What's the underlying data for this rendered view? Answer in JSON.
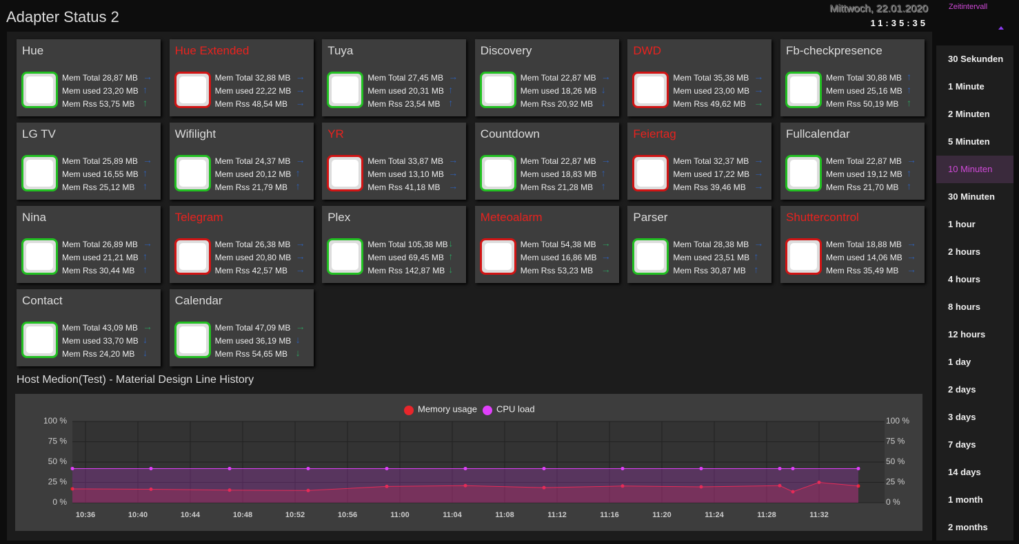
{
  "header": {
    "title": "Adapter Status 2",
    "date": "Mittwoch, 22.01.2020",
    "time": "11:35:35"
  },
  "interval": {
    "label": "Zeitintervall",
    "selected": 4,
    "options": [
      "30 Sekunden",
      "1 Minute",
      "2 Minuten",
      "5 Minuten",
      "10 Minuten",
      "30 Minuten",
      "1 hour",
      "2 hours",
      "4 hours",
      "8 hours",
      "12 hours",
      "1 day",
      "2 days",
      "3 days",
      "7 days",
      "14 days",
      "1 month",
      "2 months"
    ]
  },
  "adapters": [
    {
      "name": "Hue",
      "status": "ok",
      "metrics": [
        {
          "text": "Mem Total 28,87 MB",
          "arrow": "→",
          "arrow_color": "#2f5fb3"
        },
        {
          "text": "Mem used 23,20 MB",
          "arrow": "↑",
          "arrow_color": "#2f5fb3"
        },
        {
          "text": "Mem Rss 53,75 MB",
          "arrow": "↑",
          "arrow_color": "#2e9e5e"
        }
      ]
    },
    {
      "name": "Hue Extended",
      "status": "error",
      "metrics": [
        {
          "text": "Mem Total 32,88 MB",
          "arrow": "→",
          "arrow_color": "#2f5fb3"
        },
        {
          "text": "Mem used 22,22 MB",
          "arrow": "→",
          "arrow_color": "#2f5fb3"
        },
        {
          "text": "Mem Rss 48,54 MB",
          "arrow": "→",
          "arrow_color": "#2f5fb3"
        }
      ]
    },
    {
      "name": "Tuya",
      "status": "ok",
      "metrics": [
        {
          "text": "Mem Total 27,45 MB",
          "arrow": "→",
          "arrow_color": "#2f5fb3"
        },
        {
          "text": "Mem used 20,31 MB",
          "arrow": "↑",
          "arrow_color": "#2f5fb3"
        },
        {
          "text": "Mem Rss 23,54 MB",
          "arrow": "↑",
          "arrow_color": "#2f5fb3"
        }
      ]
    },
    {
      "name": "Discovery",
      "status": "ok",
      "metrics": [
        {
          "text": "Mem Total 22,87 MB",
          "arrow": "→",
          "arrow_color": "#2f5fb3"
        },
        {
          "text": "Mem used 18,26 MB",
          "arrow": "↓",
          "arrow_color": "#2f5fb3"
        },
        {
          "text": "Mem Rss 20,92 MB",
          "arrow": "↓",
          "arrow_color": "#2f5fb3"
        }
      ]
    },
    {
      "name": "DWD",
      "status": "error",
      "metrics": [
        {
          "text": "Mem Total 35,38 MB",
          "arrow": "→",
          "arrow_color": "#2f5fb3"
        },
        {
          "text": "Mem used 23,00 MB",
          "arrow": "→",
          "arrow_color": "#2f5fb3"
        },
        {
          "text": "Mem Rss 49,62 MB",
          "arrow": "→",
          "arrow_color": "#2e9e5e"
        }
      ]
    },
    {
      "name": "Fb-checkpresence",
      "status": "ok",
      "metrics": [
        {
          "text": "Mem Total 30,88 MB",
          "arrow": "↑",
          "arrow_color": "#2f5fb3"
        },
        {
          "text": "Mem used 25,16 MB",
          "arrow": "↑",
          "arrow_color": "#2f5fb3"
        },
        {
          "text": "Mem Rss 50,19 MB",
          "arrow": "↑",
          "arrow_color": "#2e9e5e"
        }
      ]
    },
    {
      "name": "LG TV",
      "status": "ok",
      "metrics": [
        {
          "text": "Mem Total 25,89 MB",
          "arrow": "→",
          "arrow_color": "#2f5fb3"
        },
        {
          "text": "Mem used 16,55 MB",
          "arrow": "↑",
          "arrow_color": "#2f5fb3"
        },
        {
          "text": "Mem Rss 25,12 MB",
          "arrow": "↑",
          "arrow_color": "#2f5fb3"
        }
      ]
    },
    {
      "name": "Wifilight",
      "status": "ok",
      "metrics": [
        {
          "text": "Mem Total 24,37 MB",
          "arrow": "→",
          "arrow_color": "#2f5fb3"
        },
        {
          "text": "Mem used 20,12 MB",
          "arrow": "↑",
          "arrow_color": "#2f5fb3"
        },
        {
          "text": "Mem Rss 21,79 MB",
          "arrow": "↑",
          "arrow_color": "#2f5fb3"
        }
      ]
    },
    {
      "name": "YR",
      "status": "error",
      "metrics": [
        {
          "text": "Mem Total 33,87 MB",
          "arrow": "→",
          "arrow_color": "#2f5fb3"
        },
        {
          "text": "Mem used 13,10 MB",
          "arrow": "→",
          "arrow_color": "#2f5fb3"
        },
        {
          "text": "Mem Rss 41,18 MB",
          "arrow": "→",
          "arrow_color": "#2f5fb3"
        }
      ]
    },
    {
      "name": "Countdown",
      "status": "ok",
      "metrics": [
        {
          "text": "Mem Total 22,87 MB",
          "arrow": "→",
          "arrow_color": "#2f5fb3"
        },
        {
          "text": "Mem used 18,83 MB",
          "arrow": "↑",
          "arrow_color": "#2f5fb3"
        },
        {
          "text": "Mem Rss 21,28 MB",
          "arrow": "↑",
          "arrow_color": "#2f5fb3"
        }
      ]
    },
    {
      "name": "Feiertag",
      "status": "error",
      "metrics": [
        {
          "text": "Mem Total 32,37 MB",
          "arrow": "→",
          "arrow_color": "#2f5fb3"
        },
        {
          "text": "Mem used 17,22 MB",
          "arrow": "→",
          "arrow_color": "#2f5fb3"
        },
        {
          "text": "Mem Rss 39,46 MB",
          "arrow": "→",
          "arrow_color": "#2f5fb3"
        }
      ]
    },
    {
      "name": "Fullcalendar",
      "status": "ok",
      "metrics": [
        {
          "text": "Mem Total 22,87 MB",
          "arrow": "→",
          "arrow_color": "#2f5fb3"
        },
        {
          "text": "Mem used 19,12 MB",
          "arrow": "↑",
          "arrow_color": "#2f5fb3"
        },
        {
          "text": "Mem Rss 21,70 MB",
          "arrow": "↑",
          "arrow_color": "#2f5fb3"
        }
      ]
    },
    {
      "name": "Nina",
      "status": "ok",
      "metrics": [
        {
          "text": "Mem Total 26,89 MB",
          "arrow": "→",
          "arrow_color": "#2f5fb3"
        },
        {
          "text": "Mem used 21,21 MB",
          "arrow": "↑",
          "arrow_color": "#2f5fb3"
        },
        {
          "text": "Mem Rss 30,44 MB",
          "arrow": "↑",
          "arrow_color": "#2f5fb3"
        }
      ]
    },
    {
      "name": "Telegram",
      "status": "error",
      "metrics": [
        {
          "text": "Mem Total 26,38 MB",
          "arrow": "→",
          "arrow_color": "#2f5fb3"
        },
        {
          "text": "Mem used 20,80 MB",
          "arrow": "→",
          "arrow_color": "#2f5fb3"
        },
        {
          "text": "Mem Rss 42,57 MB",
          "arrow": "→",
          "arrow_color": "#2f5fb3"
        }
      ]
    },
    {
      "name": "Plex",
      "status": "ok",
      "metrics": [
        {
          "text": "Mem Total 105,38 MB",
          "arrow": "↓",
          "arrow_color": "#2e9e5e"
        },
        {
          "text": "Mem used 69,45 MB",
          "arrow": "↑",
          "arrow_color": "#2e9e5e"
        },
        {
          "text": "Mem Rss 142,87 MB",
          "arrow": "↓",
          "arrow_color": "#2e9e5e"
        }
      ]
    },
    {
      "name": "Meteoalarm",
      "status": "error",
      "metrics": [
        {
          "text": "Mem Total 54,38 MB",
          "arrow": "→",
          "arrow_color": "#2e9e5e"
        },
        {
          "text": "Mem used 16,86 MB",
          "arrow": "→",
          "arrow_color": "#2f5fb3"
        },
        {
          "text": "Mem Rss 53,23 MB",
          "arrow": "→",
          "arrow_color": "#2e9e5e"
        }
      ]
    },
    {
      "name": "Parser",
      "status": "ok",
      "metrics": [
        {
          "text": "Mem Total 28,38 MB",
          "arrow": "→",
          "arrow_color": "#2f5fb3"
        },
        {
          "text": "Mem used 23,51 MB",
          "arrow": "↑",
          "arrow_color": "#2f5fb3"
        },
        {
          "text": "Mem Rss 30,87 MB",
          "arrow": "↑",
          "arrow_color": "#2f5fb3"
        }
      ]
    },
    {
      "name": "Shuttercontrol",
      "status": "error",
      "metrics": [
        {
          "text": "Mem Total 18,88 MB",
          "arrow": "→",
          "arrow_color": "#2f5fb3"
        },
        {
          "text": "Mem used 14,06 MB",
          "arrow": "→",
          "arrow_color": "#2f5fb3"
        },
        {
          "text": "Mem Rss 35,49 MB",
          "arrow": "→",
          "arrow_color": "#2f5fb3"
        }
      ]
    },
    {
      "name": "Contact",
      "status": "ok",
      "metrics": [
        {
          "text": "Mem Total 43,09 MB",
          "arrow": "→",
          "arrow_color": "#2e9e5e"
        },
        {
          "text": "Mem used 33,70 MB",
          "arrow": "↓",
          "arrow_color": "#2f5fb3"
        },
        {
          "text": "Mem Rss 24,20 MB",
          "arrow": "↓",
          "arrow_color": "#2f5fb3"
        }
      ]
    },
    {
      "name": "Calendar",
      "status": "ok",
      "metrics": [
        {
          "text": "Mem Total 47,09 MB",
          "arrow": "→",
          "arrow_color": "#2e9e5e"
        },
        {
          "text": "Mem used 36,19 MB",
          "arrow": "↓",
          "arrow_color": "#2f5fb3"
        },
        {
          "text": "Mem Rss 54,65 MB",
          "arrow": "↓",
          "arrow_color": "#2e9e5e"
        }
      ]
    }
  ],
  "history": {
    "type": "line",
    "title": "Host Medion(Test) - Material Design Line History",
    "xlim": [
      "10:35",
      "11:37"
    ],
    "xticks": [
      "10:36",
      "10:40",
      "10:44",
      "10:48",
      "10:52",
      "10:56",
      "11:00",
      "11:04",
      "11:08",
      "11:12",
      "11:16",
      "11:20",
      "11:24",
      "11:28",
      "11:32"
    ],
    "ylim": [
      0,
      100
    ],
    "yticks": [
      {
        "value": 0,
        "label": "0 %"
      },
      {
        "value": 25,
        "label": "25 %"
      },
      {
        "value": 50,
        "label": "50 %"
      },
      {
        "value": 75,
        "label": "75 %"
      },
      {
        "value": 100,
        "label": "100 %"
      }
    ],
    "y2lim": [
      0,
      100
    ],
    "y2ticks": [
      {
        "value": 0,
        "label": "0 %"
      },
      {
        "value": 25,
        "label": "25 %"
      },
      {
        "value": 50,
        "label": "50 %"
      },
      {
        "value": 75,
        "label": "75 %"
      },
      {
        "value": 100,
        "label": "100 %"
      }
    ],
    "grid": true,
    "series": [
      {
        "name": "Memory usage",
        "color": "#e8262b",
        "x": [
          "10:35",
          "10:41",
          "10:47",
          "10:53",
          "10:59",
          "11:05",
          "11:11",
          "11:17",
          "11:23",
          "11:29",
          "11:30",
          "11:32",
          "11:35"
        ],
        "values": [
          17,
          16.5,
          15.5,
          15,
          20,
          21,
          18.5,
          20.5,
          19.5,
          21,
          13.5,
          25,
          20.5
        ]
      },
      {
        "name": "CPU load",
        "color": "#e040fb",
        "axis": "y2",
        "x": [
          "10:35",
          "10:41",
          "10:47",
          "10:53",
          "10:59",
          "11:05",
          "11:11",
          "11:17",
          "11:23",
          "11:29",
          "11:30",
          "11:35"
        ],
        "values": [
          42,
          42,
          42,
          42,
          42,
          42,
          42,
          42,
          42,
          42,
          42,
          42
        ]
      }
    ]
  }
}
